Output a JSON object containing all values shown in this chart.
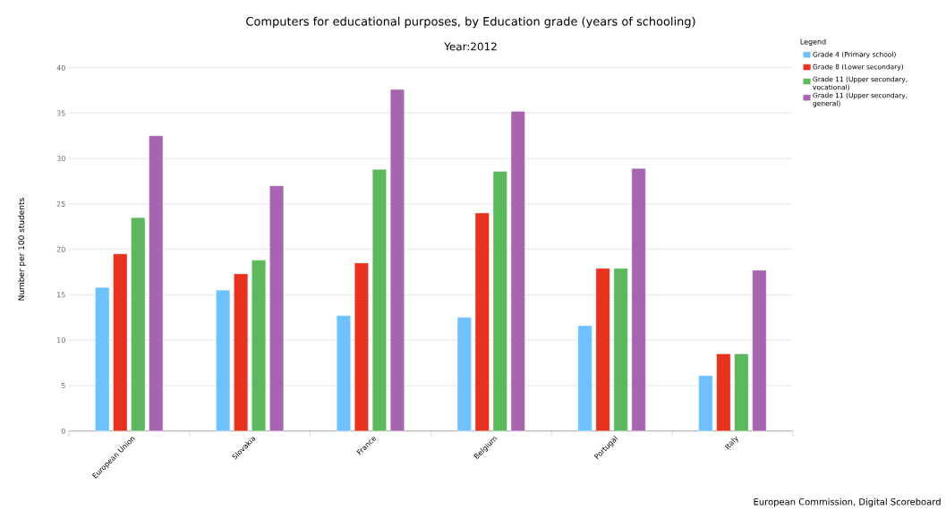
{
  "chart_data": {
    "type": "bar",
    "title": "Computers for educational purposes, by Education grade (years of schooling)",
    "subtitle": "Year:2012",
    "ylabel": "Number per 100 students",
    "legend_title": "Legend",
    "categories": [
      "European Union",
      "Slovakia",
      "France",
      "Belgium",
      "Portugal",
      "Italy"
    ],
    "series": [
      {
        "name": "Grade 4 (Primary school)",
        "color": "#6ec1ff",
        "values": [
          15.8,
          15.5,
          12.7,
          12.5,
          11.6,
          6.1
        ]
      },
      {
        "name": "Grade 8 (Lower secondary)",
        "color": "#e8321e",
        "values": [
          19.5,
          17.3,
          18.5,
          24,
          17.9,
          8.5
        ]
      },
      {
        "name": "Grade 11 (Upper secondary, vocational)",
        "color": "#5cb85c",
        "values": [
          23.5,
          18.8,
          28.8,
          28.6,
          17.9,
          8.5
        ]
      },
      {
        "name": "Grade 11 (Upper secondary, general)",
        "color": "#a765b0",
        "values": [
          32.5,
          27,
          37.6,
          35.2,
          28.9,
          17.7
        ]
      }
    ],
    "ylim": [
      0,
      40
    ],
    "yticks": [
      0,
      5,
      10,
      15,
      20,
      25,
      30,
      35,
      40
    ],
    "grid": "y",
    "legend": "top right",
    "annotations": [
      "European Commission, Digital Scoreboard"
    ]
  }
}
